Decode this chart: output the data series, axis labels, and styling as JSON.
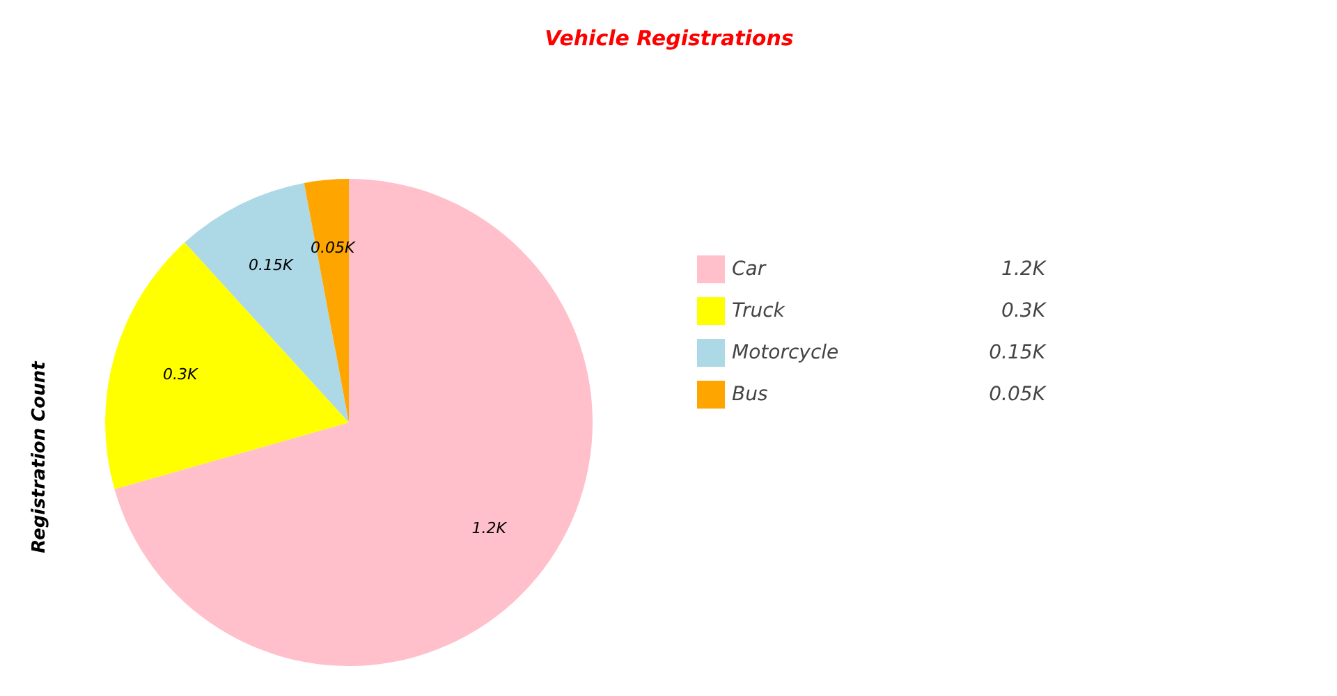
{
  "chart_data": {
    "type": "pie",
    "title": "Vehicle Registrations",
    "ylabel": "Registration Count",
    "categories": [
      "Car",
      "Truck",
      "Motorcycle",
      "Bus"
    ],
    "values": [
      1200,
      300,
      150,
      50
    ],
    "colors": [
      "#ffc0cb",
      "#ffff00",
      "#add8e6",
      "#ffa500"
    ],
    "value_labels": [
      "1.2K",
      "0.3K",
      "0.15K",
      "0.05K"
    ],
    "legend": "right"
  }
}
